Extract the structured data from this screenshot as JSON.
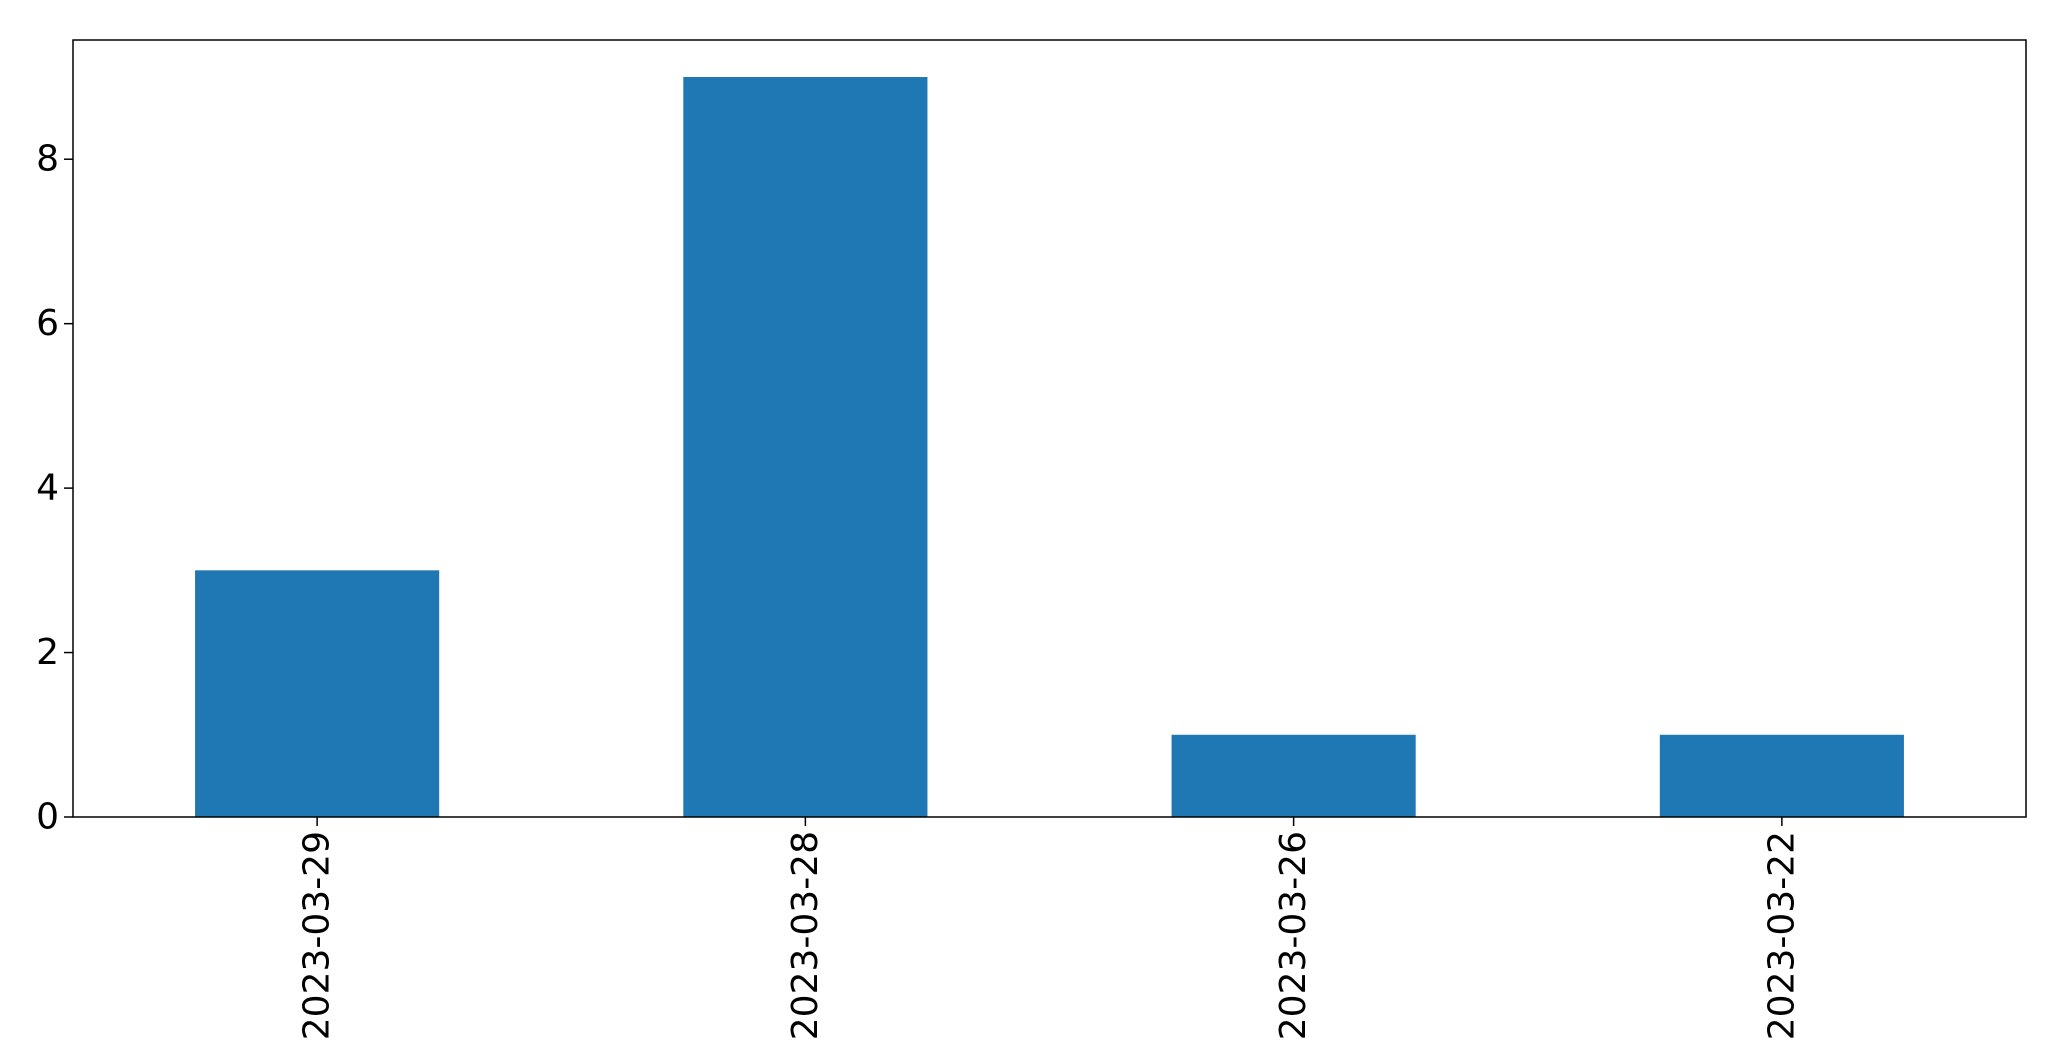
{
  "chart_data": {
    "type": "bar",
    "categories": [
      "2023-03-29",
      "2023-03-28",
      "2023-03-26",
      "2023-03-22"
    ],
    "values": [
      3,
      9,
      1,
      1
    ],
    "yticks": [
      0,
      2,
      4,
      6,
      8
    ],
    "ylim": [
      0,
      9.45
    ],
    "title": "",
    "xlabel": "",
    "ylabel": "",
    "legend": "none",
    "grid": false,
    "bar_color": "#1f77b4"
  }
}
